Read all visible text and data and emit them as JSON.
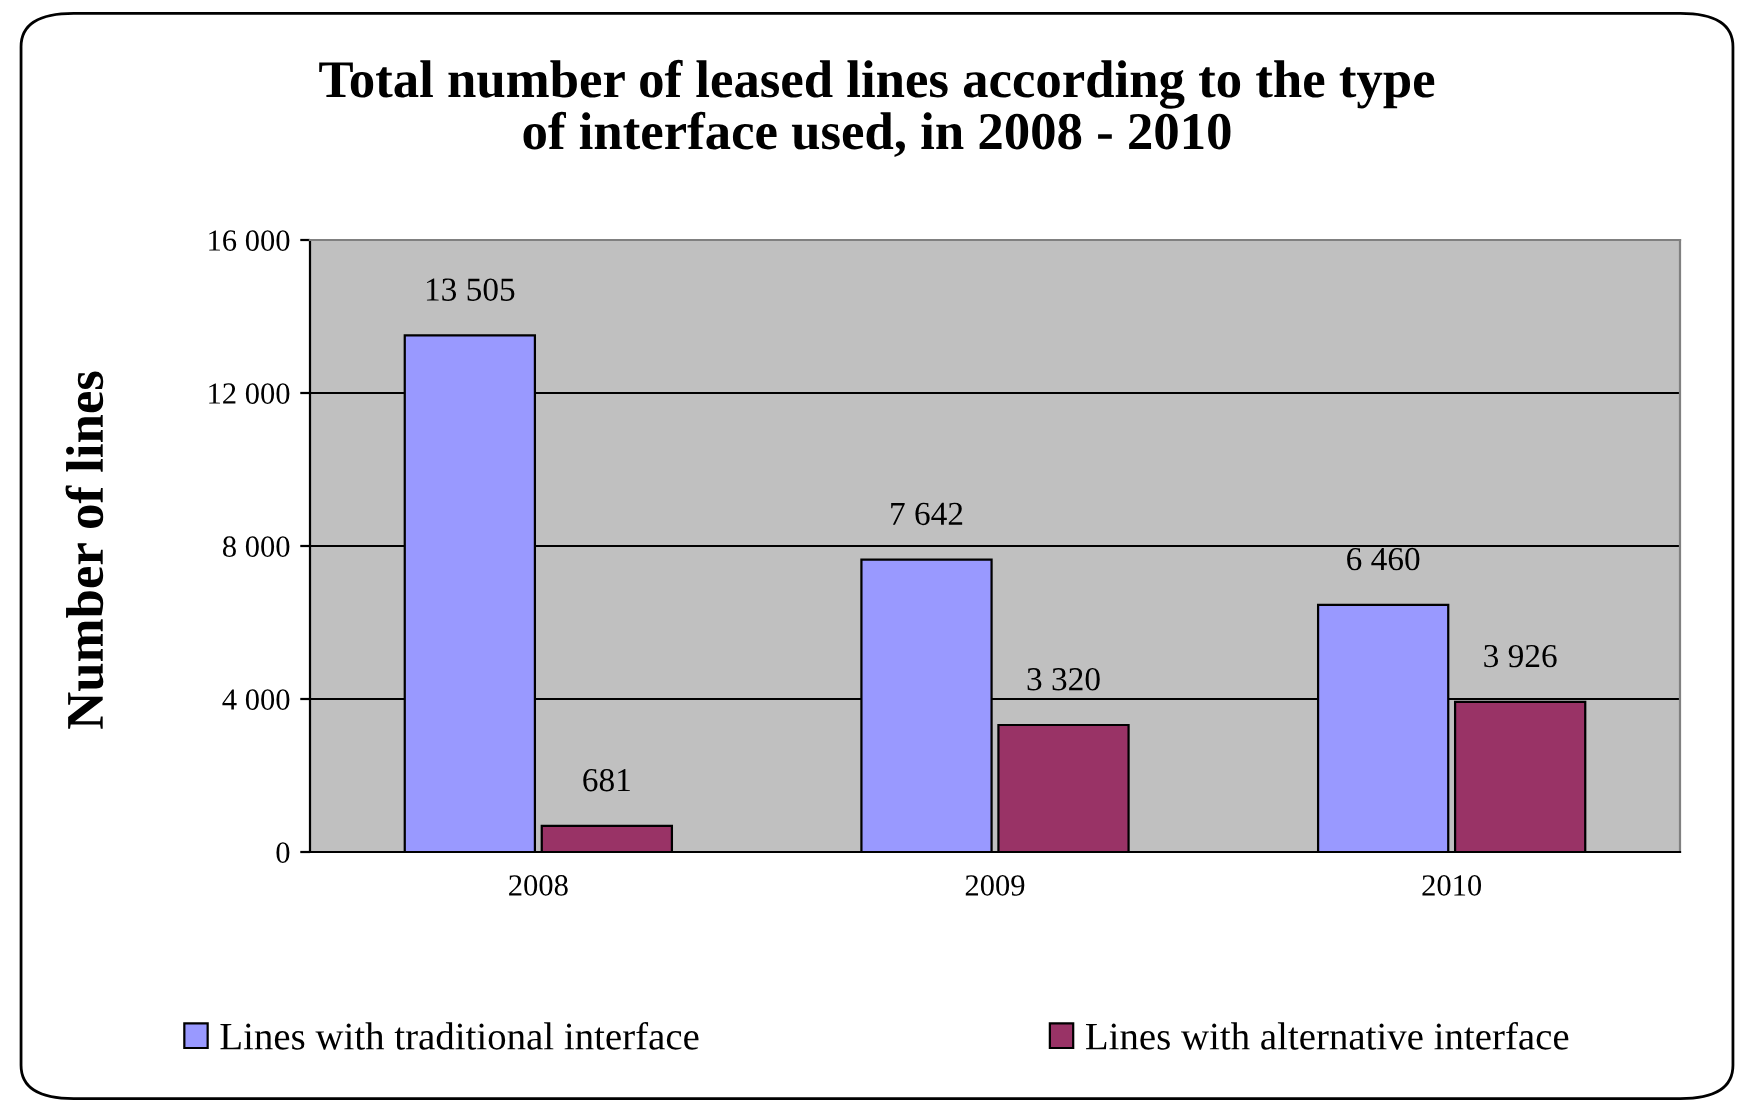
{
  "chart_data": {
    "type": "bar",
    "title": "Total number of leased lines according to the type\nof interface used, in 2008 - 2010",
    "ylabel": "Number of lines",
    "categories": [
      "2008",
      "2009",
      "2010"
    ],
    "series": [
      {
        "name": "Lines with traditional interface",
        "color": "#9999ff",
        "values": [
          13505,
          7642,
          6460
        ],
        "value_labels": [
          "13 505",
          "7 642",
          "6 460"
        ]
      },
      {
        "name": "Lines with alternative interface",
        "color": "#993366",
        "values": [
          681,
          3320,
          3926
        ],
        "value_labels": [
          "681",
          "3 320",
          "3 926"
        ]
      }
    ],
    "ylim": [
      0,
      16000
    ],
    "yticks": [
      0,
      {
        "value": 4000,
        "label": "4 000"
      },
      {
        "value": 8000,
        "label": "8 000"
      },
      {
        "value": 12000,
        "label": "12 000"
      },
      {
        "value": 16000,
        "label": "16 000"
      }
    ],
    "grid": "y",
    "legend": "bottom"
  }
}
